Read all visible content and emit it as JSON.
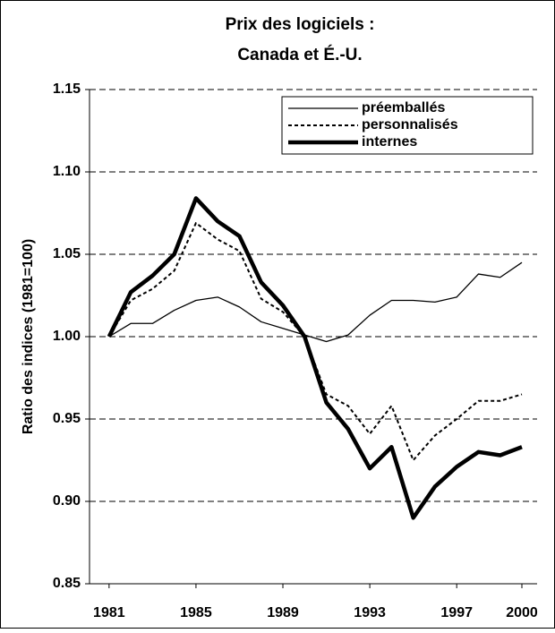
{
  "chart_data": {
    "type": "line",
    "title": [
      "Prix des logiciels :",
      "Canada et É.-U."
    ],
    "y_label": "Ratio des indices (1981=100)",
    "x": [
      1981,
      1982,
      1983,
      1984,
      1985,
      1986,
      1987,
      1988,
      1989,
      1990,
      1991,
      1992,
      1993,
      1994,
      1995,
      1996,
      1997,
      1998,
      1999,
      2000
    ],
    "series": [
      {
        "name": "préemballés",
        "color": "#000000",
        "line_width": 1.3,
        "dash": false,
        "values": [
          1.0,
          1.008,
          1.008,
          1.016,
          1.022,
          1.024,
          1.018,
          1.009,
          1.005,
          1.001,
          0.997,
          1.001,
          1.013,
          1.022,
          1.022,
          1.021,
          1.024,
          1.038,
          1.036,
          1.045
        ]
      },
      {
        "name": "personnalisés",
        "color": "#000000",
        "line_width": 2,
        "dash": true,
        "values": [
          1.0,
          1.022,
          1.029,
          1.04,
          1.069,
          1.059,
          1.052,
          1.023,
          1.015,
          1.0,
          0.965,
          0.958,
          0.941,
          0.958,
          0.925,
          0.94,
          0.95,
          0.961,
          0.961,
          0.965
        ]
      },
      {
        "name": "internes",
        "color": "#000000",
        "line_width": 4.5,
        "dash": false,
        "values": [
          1.0,
          1.027,
          1.037,
          1.05,
          1.084,
          1.07,
          1.061,
          1.033,
          1.019,
          1.0,
          0.96,
          0.944,
          0.92,
          0.933,
          0.89,
          0.909,
          0.921,
          0.93,
          0.928,
          0.933
        ]
      }
    ],
    "xlim": [
      1980.1,
      2000.7
    ],
    "xticks": [
      1981,
      1985,
      1989,
      1993,
      1997,
      2000
    ],
    "ylim": [
      0.85,
      1.15
    ],
    "yticks": [
      1.15,
      {
        "value": 1.1,
        "label": "1.10"
      },
      1.05,
      {
        "value": 1.0,
        "label": "1.00"
      },
      0.95,
      {
        "value": 0.9,
        "label": "0.90"
      },
      0.85
    ],
    "grid": true,
    "legend": "top-right"
  }
}
